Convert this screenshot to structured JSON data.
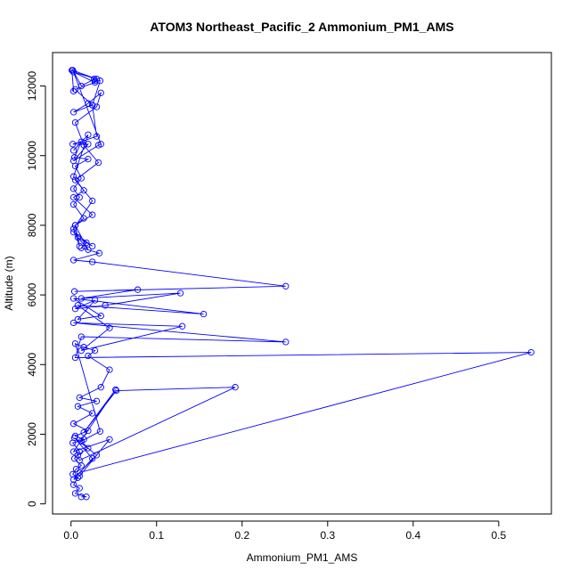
{
  "chart_data": {
    "type": "line",
    "title": "ATOM3 Northeast_Pacific_2 Ammonium_PM1_AMS",
    "xlabel": "Ammonium_PM1_AMS",
    "ylabel": "Altitude (m)",
    "xlim": [
      -0.0216,
      0.5616
    ],
    "ylim": [
      -290,
      12960
    ],
    "xticks": [
      0,
      0.1,
      0.2,
      0.3,
      0.4,
      0.5
    ],
    "xtick_labels": [
      "0.0",
      "0.1",
      "0.2",
      "0.3",
      "0.4",
      "0.5"
    ],
    "yticks": [
      0,
      2000,
      4000,
      6000,
      8000,
      10000,
      12000
    ],
    "ytick_labels": [
      "0",
      "2000",
      "4000",
      "6000",
      "8000",
      "10000",
      "12000"
    ],
    "grid": false,
    "legend": "none",
    "series": [
      {
        "color": "#0000ff",
        "marker": "open-circle",
        "x": [
          0.012,
          0.018,
          0.005,
          0.01,
          0.003,
          0.008,
          0.002,
          0.006,
          0.012,
          0.004,
          0.01,
          0.002,
          0.015,
          0.005,
          0.02,
          0.003,
          0.025,
          0.008,
          0.03,
          0.01,
          0.035,
          0.045,
          0.02,
          0.028,
          0.015,
          0.005,
          0.034,
          0.012,
          0.02,
          0.008,
          0.01,
          0.192,
          0.053,
          0.015,
          0.052,
          0.003,
          0.045,
          0.01,
          0.003,
          0.025,
          0.004,
          0.03,
          0.01,
          0.538,
          0.005,
          0.012,
          0.251,
          0.003,
          0.13,
          0.012,
          0.045,
          0.008,
          0.155,
          0.003,
          0.035,
          0.008,
          0.028,
          0.005,
          0.04,
          0.128,
          0.012,
          0.078,
          0.004,
          0.251,
          0.025,
          0.003,
          0.033,
          0.012,
          0.018,
          0.008,
          0.025,
          0.003,
          0.02,
          0.005,
          0.015,
          0.003,
          0.01,
          0.003,
          0.012,
          0.005,
          0.02,
          0.004,
          0.012,
          0.003,
          0.02,
          0.003,
          0.015,
          0.003,
          0.025,
          0.005,
          0.01,
          0.003,
          0.025,
          0.005,
          0.032,
          0.015,
          0.005,
          0.03,
          0.035,
          0.02,
          0.003,
          0.025,
          0.005,
          0.028,
          0.003,
          0.03,
          0.002,
          0.012,
          0.027,
          0.028,
          0.034,
          0.025,
          0.03,
          0.002,
          0.02,
          0.003,
          0.032,
          0.035,
          0.002,
          0.001,
          0.003
        ],
        "y": [
          200,
          200,
          300,
          450,
          550,
          750,
          850,
          1000,
          1100,
          1300,
          1500,
          1750,
          1850,
          1950,
          2100,
          2300,
          2600,
          2800,
          2950,
          3050,
          3350,
          3850,
          4250,
          4400,
          4500,
          4600,
          2080,
          1800,
          1600,
          1400,
          1250,
          3350,
          3250,
          2050,
          3280,
          1500,
          1850,
          800,
          700,
          1300,
          1900,
          1400,
          900,
          4350,
          4200,
          4800,
          4650,
          5200,
          5100,
          4400,
          5050,
          5700,
          5450,
          5900,
          5400,
          5300,
          5850,
          5600,
          5700,
          6050,
          5900,
          6150,
          6100,
          6250,
          6950,
          7000,
          7200,
          7350,
          7500,
          7650,
          7400,
          7800,
          7300,
          8000,
          8200,
          8600,
          8800,
          9050,
          9350,
          9700,
          9900,
          9950,
          10400,
          10150,
          10600,
          9400,
          9000,
          8800,
          8300,
          8000,
          7400,
          7900,
          8700,
          9300,
          9800,
          10300,
          10950,
          11400,
          11800,
          11500,
          11250,
          11450,
          11900,
          12100,
          12400,
          12200,
          12450,
          12000,
          12200,
          12150,
          12150,
          11450,
          10550,
          10330,
          10330,
          9850,
          10300,
          10330,
          12450,
          12450,
          11850
        ]
      }
    ]
  }
}
